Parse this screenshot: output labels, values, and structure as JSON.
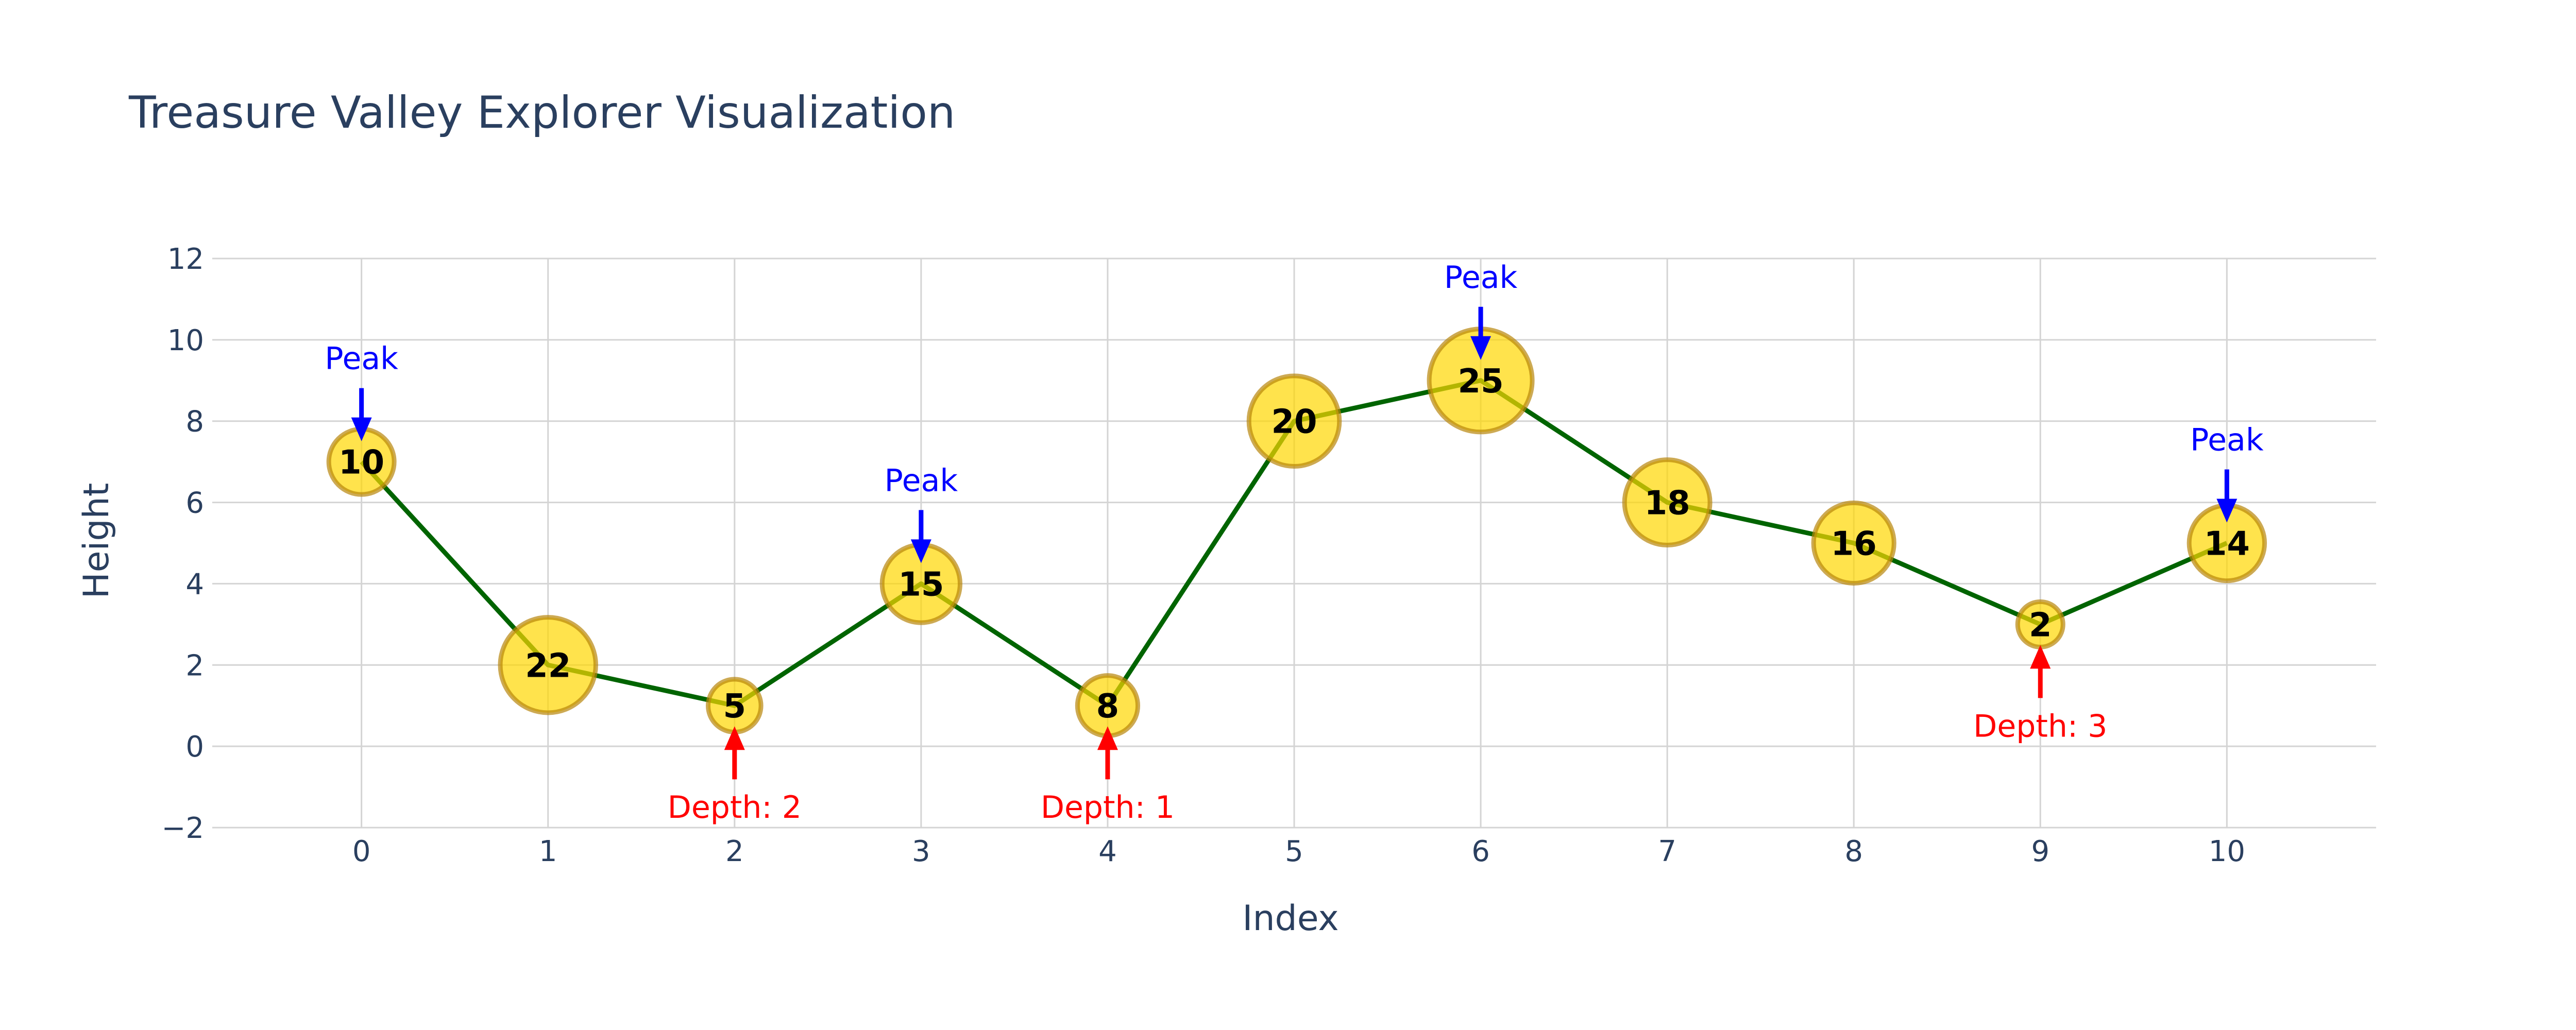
{
  "chart_data": {
    "type": "scatter",
    "title": "Treasure Valley Explorer Visualization",
    "xlabel": "Index",
    "ylabel": "Height",
    "xlim": [
      -0.8,
      10.8
    ],
    "ylim": [
      -2,
      12
    ],
    "x_ticks": [
      0,
      1,
      2,
      3,
      4,
      5,
      6,
      7,
      8,
      9,
      10
    ],
    "y_ticks": [
      -2,
      0,
      2,
      4,
      6,
      8,
      10,
      12
    ],
    "grid": true,
    "mode": "lines+markers+text",
    "line_color": "#006400",
    "marker_color": "#ffd700",
    "marker_line_color": "#b8860b",
    "series": [
      {
        "x": [
          0,
          1,
          2,
          3,
          4,
          5,
          6,
          7,
          8,
          9,
          10
        ],
        "y": [
          7,
          2,
          1,
          4,
          1,
          8,
          9,
          6,
          5,
          3,
          5
        ],
        "labels": [
          10,
          22,
          5,
          15,
          8,
          20,
          25,
          18,
          16,
          2,
          14
        ]
      }
    ],
    "annotations": [
      {
        "x": 0,
        "y": 7,
        "text": "Peak",
        "direction": "above",
        "color": "#0000ff"
      },
      {
        "x": 3,
        "y": 4,
        "text": "Peak",
        "direction": "above",
        "color": "#0000ff"
      },
      {
        "x": 6,
        "y": 9,
        "text": "Peak",
        "direction": "above",
        "color": "#0000ff"
      },
      {
        "x": 10,
        "y": 5,
        "text": "Peak",
        "direction": "above",
        "color": "#0000ff"
      },
      {
        "x": 2,
        "y": 1,
        "text": "Depth: 2",
        "direction": "below",
        "color": "#ff0000"
      },
      {
        "x": 4,
        "y": 1,
        "text": "Depth: 1",
        "direction": "below",
        "color": "#ff0000"
      },
      {
        "x": 9,
        "y": 3,
        "text": "Depth: 3",
        "direction": "below",
        "color": "#ff0000"
      }
    ]
  }
}
